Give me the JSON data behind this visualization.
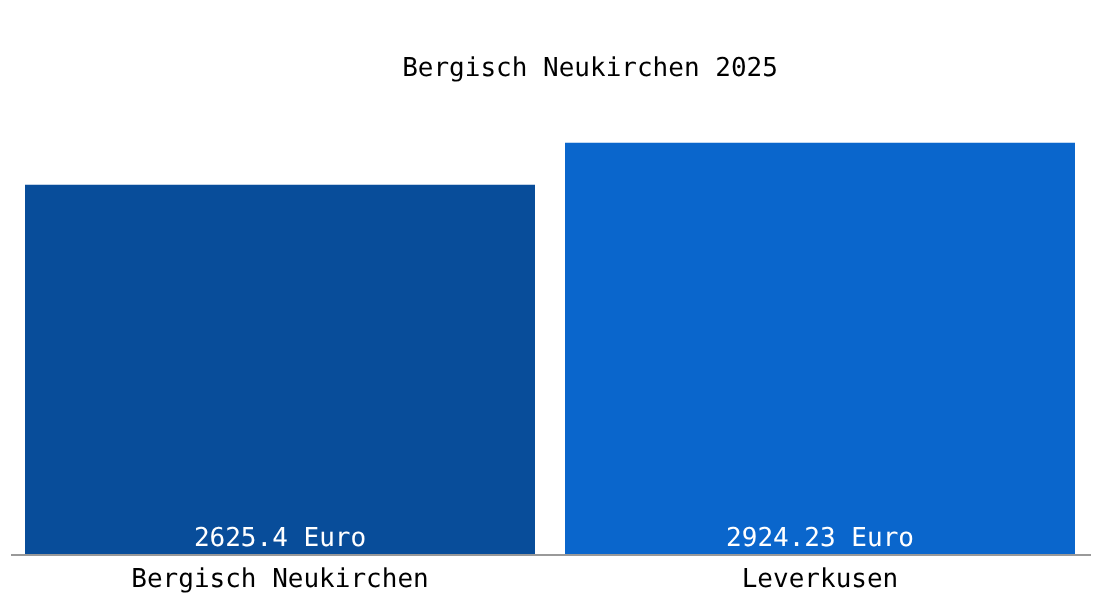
{
  "chart_data": {
    "type": "bar",
    "title": "Bergisch Neukirchen 2025",
    "categories": [
      "Bergisch Neukirchen",
      "Leverkusen"
    ],
    "values": [
      2625.4,
      2924.23
    ],
    "colors": [
      "#084d9a",
      "#0a66cc"
    ],
    "value_labels": [
      "2625.4 Euro",
      "2924.23 Euro"
    ],
    "tick_labels": "x",
    "grid": false,
    "legend": false
  }
}
